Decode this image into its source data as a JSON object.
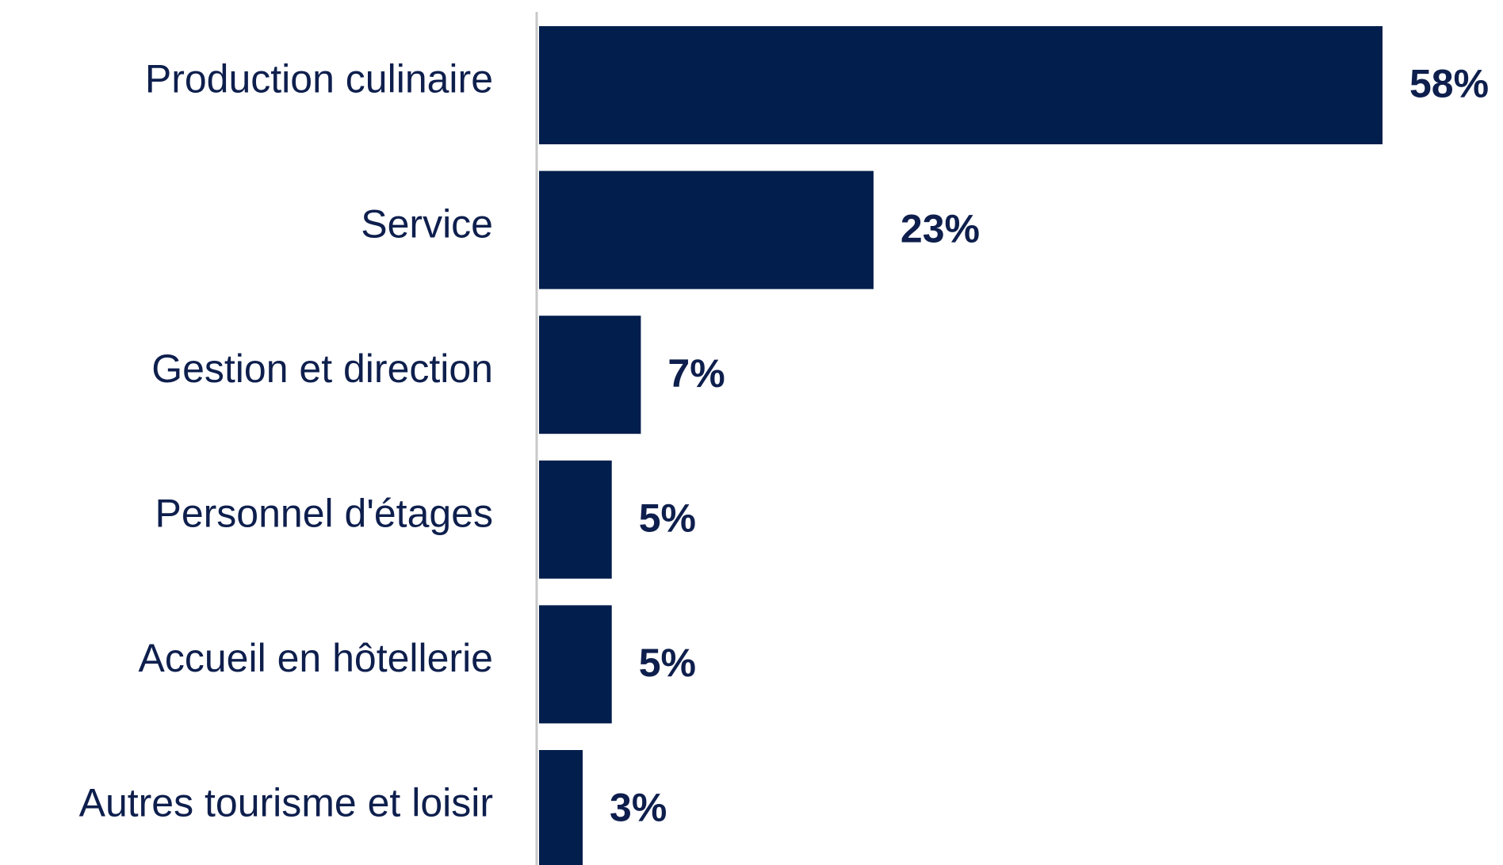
{
  "chart_data": {
    "type": "bar",
    "orientation": "horizontal",
    "categories": [
      "Production culinaire",
      "Service",
      "Gestion et direction",
      "Personnel d'étages",
      "Accueil en hôtellerie",
      "Autres tourisme et loisir"
    ],
    "values": [
      58,
      23,
      7,
      5,
      5,
      3
    ],
    "value_labels": [
      "58%",
      "23%",
      "7%",
      "5%",
      "5%",
      "3%"
    ],
    "color": "#021e4c"
  }
}
